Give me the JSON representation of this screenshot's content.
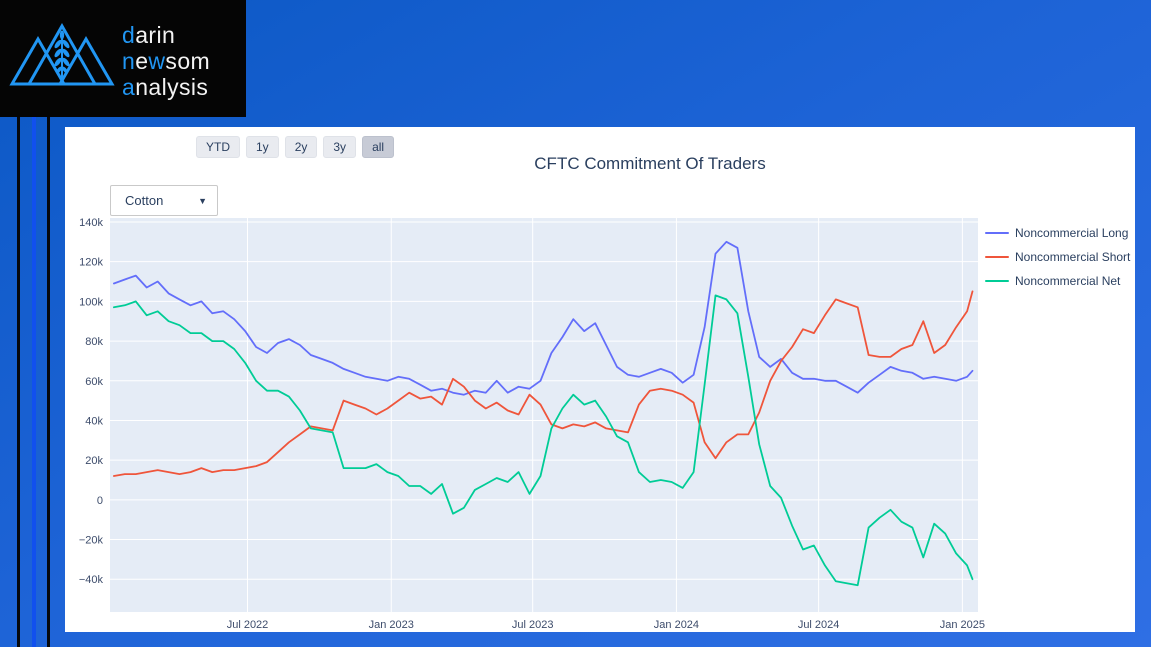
{
  "page": {
    "background_color_top": "#0b58c4",
    "background_color_bottom": "#2f6fe4",
    "stripe_blue_color": "#1150ee"
  },
  "logo": {
    "accent_color": "#2196f3",
    "word1": {
      "accent": "d",
      "rest": "arin"
    },
    "word2": {
      "accent1": "n",
      "rest1": "e",
      "accent2": "w",
      "rest2": "som"
    },
    "word3": {
      "accent": "a",
      "rest": "nalysis"
    }
  },
  "toolbar": {
    "range_buttons": [
      {
        "label": "YTD",
        "selected": false
      },
      {
        "label": "1y",
        "selected": false
      },
      {
        "label": "2y",
        "selected": false
      },
      {
        "label": "3y",
        "selected": false
      },
      {
        "label": "all",
        "selected": true
      }
    ]
  },
  "controls": {
    "commodity_dropdown": {
      "value": "Cotton",
      "caret": "▼"
    }
  },
  "chart_data": {
    "type": "line",
    "title": "CFTC Commitment Of Traders",
    "xlabel": "",
    "ylabel": "",
    "y_unit": "thousands of contracts",
    "plot_bg": "#e5ecf6",
    "grid_color": "#ffffff",
    "legend_position": "top-right-outside",
    "x_domain": [
      "2022-01-06",
      "2025-01-21"
    ],
    "y_domain": [
      -56.5,
      142
    ],
    "y_ticks": {
      "values": [
        140,
        120,
        100,
        80,
        60,
        40,
        20,
        0,
        -20,
        -40
      ],
      "labels": [
        "140k",
        "120k",
        "100k",
        "80k",
        "60k",
        "40k",
        "20k",
        "0",
        "−20k",
        "−40k"
      ]
    },
    "x_ticks": {
      "values": [
        "2022-07-01",
        "2023-01-01",
        "2023-07-01",
        "2024-01-01",
        "2024-07-01",
        "2025-01-01"
      ],
      "labels": [
        "Jul 2022",
        "Jan 2023",
        "Jul 2023",
        "Jan 2024",
        "Jul 2024",
        "Jan 2025"
      ]
    },
    "x": [
      "2022-01-11",
      "2022-01-25",
      "2022-02-08",
      "2022-02-22",
      "2022-03-08",
      "2022-03-22",
      "2022-04-05",
      "2022-04-19",
      "2022-05-03",
      "2022-05-17",
      "2022-05-31",
      "2022-06-14",
      "2022-06-28",
      "2022-07-12",
      "2022-07-26",
      "2022-08-09",
      "2022-08-23",
      "2022-09-06",
      "2022-09-20",
      "2022-10-04",
      "2022-10-18",
      "2022-11-01",
      "2022-11-15",
      "2022-11-29",
      "2022-12-13",
      "2022-12-27",
      "2023-01-10",
      "2023-01-24",
      "2023-02-07",
      "2023-02-21",
      "2023-03-07",
      "2023-03-21",
      "2023-04-04",
      "2023-04-18",
      "2023-05-02",
      "2023-05-16",
      "2023-05-30",
      "2023-06-13",
      "2023-06-27",
      "2023-07-11",
      "2023-07-25",
      "2023-08-08",
      "2023-08-22",
      "2023-09-05",
      "2023-09-19",
      "2023-10-03",
      "2023-10-17",
      "2023-10-31",
      "2023-11-14",
      "2023-11-28",
      "2023-12-12",
      "2023-12-26",
      "2024-01-09",
      "2024-01-23",
      "2024-02-06",
      "2024-02-20",
      "2024-03-05",
      "2024-03-19",
      "2024-04-02",
      "2024-04-16",
      "2024-04-30",
      "2024-05-14",
      "2024-05-28",
      "2024-06-11",
      "2024-06-25",
      "2024-07-09",
      "2024-07-23",
      "2024-08-06",
      "2024-08-20",
      "2024-09-03",
      "2024-09-17",
      "2024-10-01",
      "2024-10-15",
      "2024-10-29",
      "2024-11-12",
      "2024-11-26",
      "2024-12-10",
      "2024-12-24",
      "2025-01-07",
      "2025-01-14"
    ],
    "series": [
      {
        "name": "Noncommercial Long",
        "color": "#636efa",
        "values": [
          109,
          111,
          113,
          107,
          110,
          104,
          101,
          98,
          100,
          94,
          95,
          91,
          85,
          77,
          74,
          79,
          81,
          78,
          73,
          71,
          69,
          66,
          64,
          62,
          61,
          60,
          62,
          61,
          58,
          55,
          56,
          54,
          53,
          55,
          54,
          60,
          54,
          57,
          56,
          60,
          74,
          82,
          91,
          85,
          89,
          78,
          67,
          63,
          62,
          64,
          66,
          64,
          59,
          63,
          87,
          124,
          130,
          127,
          95,
          72,
          67,
          71,
          64,
          61,
          61,
          60,
          60,
          57,
          54,
          59,
          63,
          67,
          65,
          64,
          61,
          62,
          61,
          60,
          62,
          65
        ]
      },
      {
        "name": "Noncommercial Short",
        "color": "#ef553b",
        "values": [
          12,
          13,
          13,
          14,
          15,
          14,
          13,
          14,
          16,
          14,
          15,
          15,
          16,
          17,
          19,
          24,
          29,
          33,
          37,
          36,
          35,
          50,
          48,
          46,
          43,
          46,
          50,
          54,
          51,
          52,
          48,
          61,
          57,
          50,
          46,
          49,
          45,
          43,
          53,
          48,
          38,
          36,
          38,
          37,
          39,
          36,
          35,
          34,
          48,
          55,
          56,
          55,
          53,
          49,
          29,
          21,
          29,
          33,
          33,
          44,
          60,
          70,
          77,
          86,
          84,
          93,
          101,
          99,
          97,
          73,
          72,
          72,
          76,
          78,
          90,
          74,
          78,
          87,
          95,
          105
        ]
      },
      {
        "name": "Noncommercial Net",
        "color": "#00cc96",
        "values": [
          97,
          98,
          100,
          93,
          95,
          90,
          88,
          84,
          84,
          80,
          80,
          76,
          69,
          60,
          55,
          55,
          52,
          45,
          36,
          35,
          34,
          16,
          16,
          16,
          18,
          14,
          12,
          7,
          7,
          3,
          8,
          -7,
          -4,
          5,
          8,
          11,
          9,
          14,
          3,
          12,
          36,
          46,
          53,
          48,
          50,
          42,
          32,
          29,
          14,
          9,
          10,
          9,
          6,
          14,
          58,
          103,
          101,
          94,
          62,
          28,
          7,
          1,
          -13,
          -25,
          -23,
          -33,
          -41,
          -42,
          -43,
          -14,
          -9,
          -5,
          -11,
          -14,
          -29,
          -12,
          -17,
          -27,
          -33,
          -40
        ]
      }
    ]
  }
}
